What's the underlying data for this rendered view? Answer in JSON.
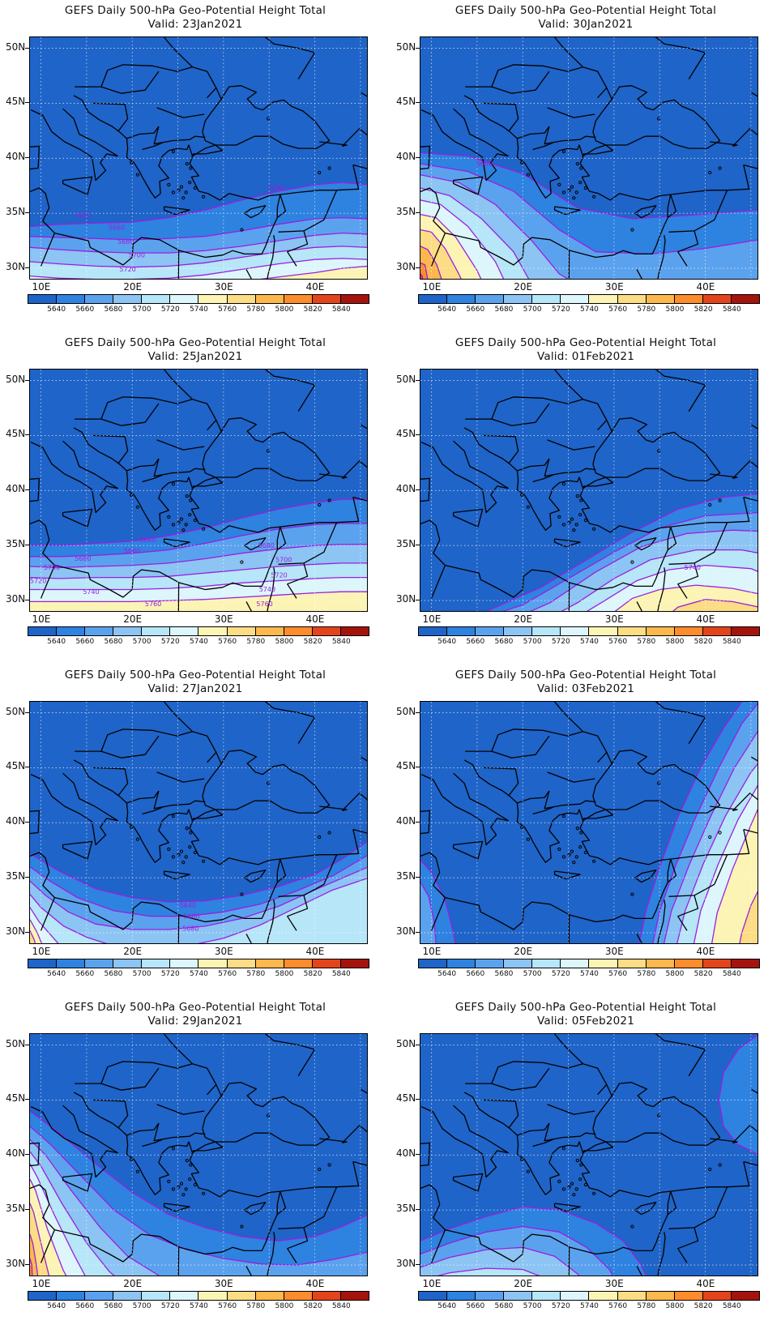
{
  "title_line1": "GEFS Daily 500-hPa Geo-Potential Height Total",
  "lat_labels": [
    "50N",
    "45N",
    "40N",
    "35N",
    "30N"
  ],
  "lon_labels": [
    "10E",
    "20E",
    "30E",
    "40E"
  ],
  "colorbar": {
    "labels": [
      "5640",
      "5660",
      "5680",
      "5700",
      "5720",
      "5740",
      "5760",
      "5780",
      "5800",
      "5820",
      "5840"
    ],
    "colors": [
      "#1f64c8",
      "#2e82e0",
      "#5ba2ee",
      "#8cc4f4",
      "#b6e6f8",
      "#dcf6fc",
      "#fcf4b4",
      "#fcdc84",
      "#fcb84c",
      "#fc8c2c",
      "#e4441c",
      "#a4140c"
    ]
  },
  "contour_color": "#9b1ee0",
  "panels": [
    {
      "valid": "Valid: 23Jan2021",
      "labels": [
        "5640",
        "5640",
        "5660",
        "5680",
        "5700",
        "5720"
      ]
    },
    {
      "valid": "Valid: 30Jan2021",
      "labels": [
        "5680"
      ]
    },
    {
      "valid": "Valid: 25Jan2021",
      "labels": [
        "5640",
        "5660",
        "5680",
        "5680",
        "5700",
        "5700",
        "5720",
        "5720",
        "5740",
        "5740",
        "5760",
        "5760"
      ]
    },
    {
      "valid": "Valid: 01Feb2021",
      "labels": [
        "5740"
      ]
    },
    {
      "valid": "Valid: 27Jan2021",
      "labels": [
        "5640",
        "5660",
        "5680"
      ]
    },
    {
      "valid": "Valid: 03Feb2021",
      "labels": []
    },
    {
      "valid": "Valid: 29Jan2021",
      "labels": []
    },
    {
      "valid": "Valid: 05Feb2021",
      "labels": []
    }
  ]
}
